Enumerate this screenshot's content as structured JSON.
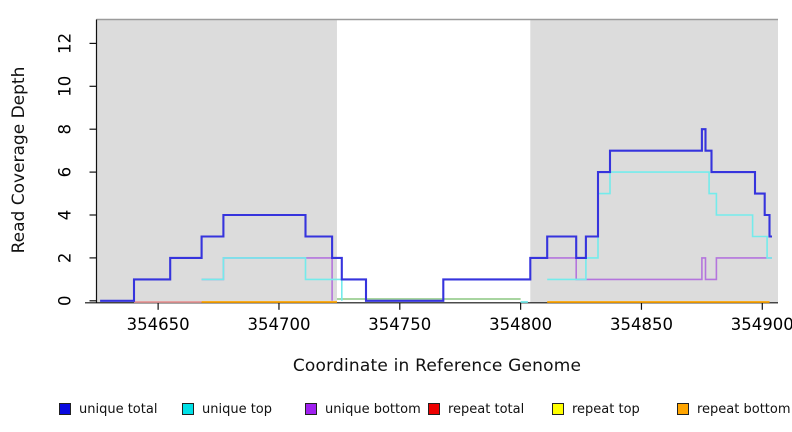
{
  "figure": {
    "background": "#ffffff",
    "plot_background": "#ffffff"
  },
  "chart_data": {
    "type": "line",
    "subtype": "step-coverage",
    "title": "",
    "xlabel": "Coordinate in Reference Genome",
    "ylabel": "Read Coverage Depth",
    "xlim": [
      354624.5,
      354906.5
    ],
    "ylim": [
      0,
      13.1
    ],
    "xticks": [
      354650,
      354700,
      354750,
      354800,
      354850,
      354900
    ],
    "yticks": [
      0,
      2,
      4,
      6,
      8,
      10,
      12
    ],
    "grid": false,
    "region_color": "#dcdcdc",
    "shaded_regions": [
      {
        "name": "aligned-region-left",
        "from": 354624.5,
        "to": 354724
      },
      {
        "name": "aligned-region-right",
        "from": 354804,
        "to": 354906.5
      }
    ],
    "series": [
      {
        "name": "unique total",
        "color": "#3634dd",
        "width": 2.1,
        "parts": [
          {
            "steps": [
              [
                354626,
                0
              ],
              [
                354640,
                1
              ],
              [
                354655,
                2
              ],
              [
                354668,
                3
              ],
              [
                354677,
                4
              ],
              [
                354711,
                3
              ],
              [
                354722,
                2
              ],
              [
                354726,
                1
              ],
              [
                354736,
                0
              ],
              [
                354768,
                1
              ],
              [
                354804,
                2
              ],
              [
                354811,
                3
              ],
              [
                354823,
                2
              ],
              [
                354827,
                3
              ],
              [
                354832,
                6
              ],
              [
                354837,
                7
              ],
              [
                354875,
                8
              ],
              [
                354876.5,
                7
              ],
              [
                354879,
                6
              ],
              [
                354897,
                5
              ],
              [
                354901,
                4
              ],
              [
                354903,
                3
              ]
            ],
            "end": 354904,
            "endDrop": false
          }
        ]
      },
      {
        "name": "unique top",
        "color": "#74ebeb",
        "width": 1.6,
        "parts": [
          {
            "steps": [
              [
                354668,
                1
              ],
              [
                354677,
                2
              ],
              [
                354711,
                1
              ]
            ],
            "end": 354726,
            "endDrop": true
          },
          {
            "steps": [
              [
                354811,
                1
              ],
              [
                354827,
                2
              ],
              [
                354832,
                5
              ],
              [
                354837,
                6
              ],
              [
                354878,
                5
              ],
              [
                354881,
                4
              ],
              [
                354896,
                3
              ],
              [
                354902,
                2
              ]
            ],
            "end": 354904,
            "endDrop": false
          }
        ]
      },
      {
        "name": "unique bottom",
        "color": "#b475dd",
        "width": 1.6,
        "parts": [
          {
            "steps": [
              [
                354668,
                1
              ],
              [
                354677,
                2
              ]
            ],
            "end": 354722,
            "endDrop": true
          },
          {
            "steps": [
              [
                354804,
                2
              ],
              [
                354823,
                1
              ],
              [
                354875,
                2
              ],
              [
                354876.5,
                1
              ],
              [
                354881,
                2
              ]
            ],
            "end": 354904,
            "endDrop": false
          }
        ]
      },
      {
        "name": "repeat total",
        "color": "#ee0000",
        "width": 1.6,
        "parts": []
      },
      {
        "name": "repeat top",
        "color": "#ffff00",
        "width": 1.6,
        "parts": []
      },
      {
        "name": "repeat bottom",
        "color": "#ffa500",
        "width": 2.0,
        "parts": []
      }
    ],
    "zero_level_segments": [
      {
        "name": "repeat-total-zero",
        "color": "#e89a9a",
        "from": 354640,
        "to": 354668,
        "lift": 0
      },
      {
        "name": "repeat-bottom-zero",
        "color": "#ffa500",
        "from": 354668,
        "to": 354724,
        "lift": 0
      },
      {
        "name": "repeat-top-over-unique-top-zero",
        "color": "#9bcf92",
        "from": 354724,
        "to": 354800,
        "lift": 3
      },
      {
        "name": "unique-top-zero",
        "color": "#6fe8e8",
        "from": 354800,
        "to": 354803,
        "lift": 0
      },
      {
        "name": "repeat-bottom-zero",
        "color": "#ffa500",
        "from": 354811,
        "to": 354903,
        "lift": 0
      }
    ]
  },
  "legend": {
    "items": [
      {
        "label": "unique total",
        "color": "#0909e0"
      },
      {
        "label": "unique top",
        "color": "#00e0e6"
      },
      {
        "label": "unique bottom",
        "color": "#a020f0"
      },
      {
        "label": "repeat total",
        "color": "#ee0000"
      },
      {
        "label": "repeat top",
        "color": "#ffff00"
      },
      {
        "label": "repeat bottom",
        "color": "#ffa500"
      }
    ]
  }
}
